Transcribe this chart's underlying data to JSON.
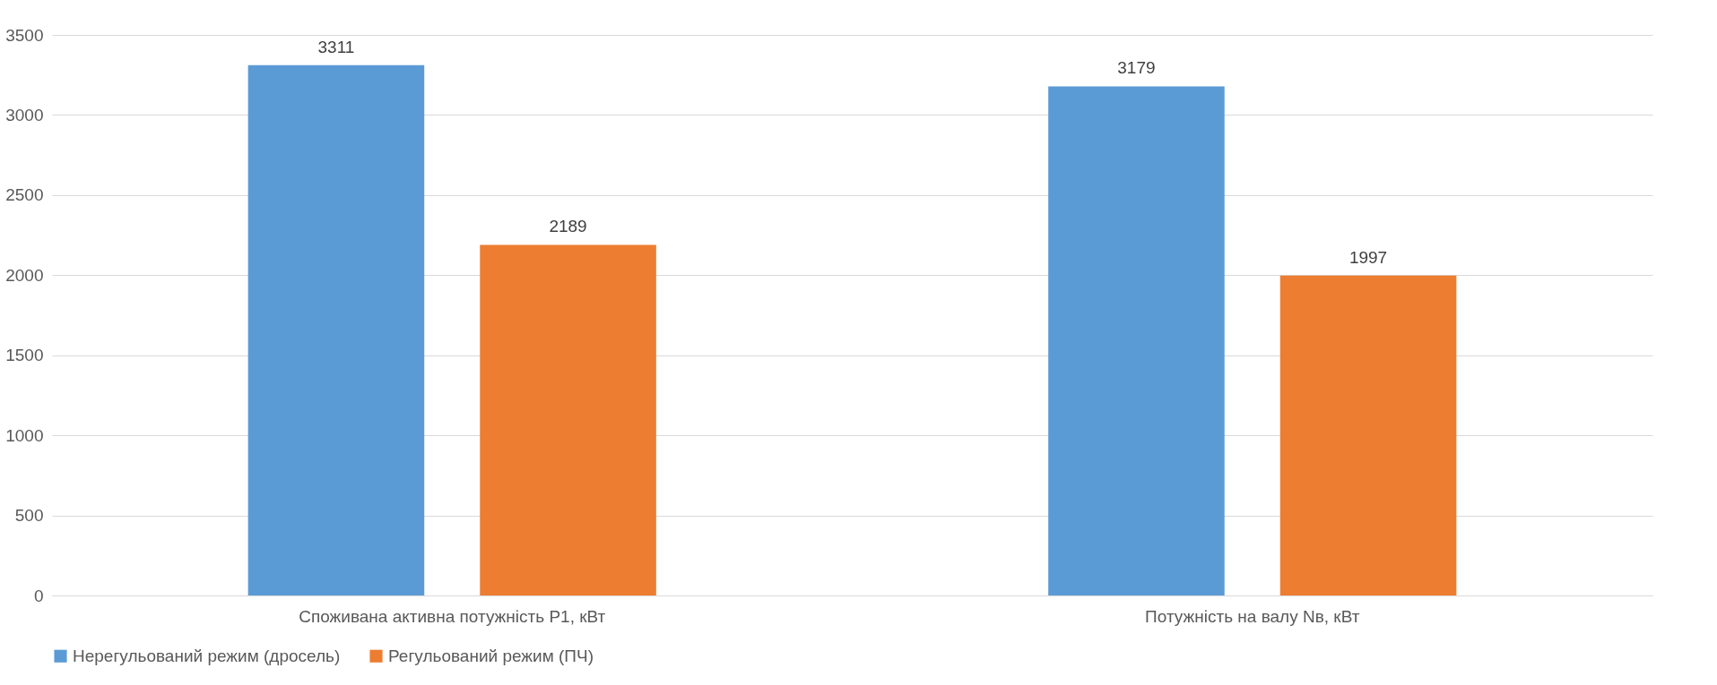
{
  "chart_data": {
    "type": "bar",
    "categories": [
      "Споживана активна потужність Р1, кВт",
      "Потужність на валу Nв, кВт"
    ],
    "series": [
      {
        "name": "Нерегульований режим (дросель)",
        "color": "#5b9bd5",
        "values": [
          3311,
          3179
        ]
      },
      {
        "name": "Регульований режим (ПЧ)",
        "color": "#ed7d31",
        "values": [
          2189,
          1997
        ]
      }
    ],
    "ylim": [
      0,
      3500
    ],
    "yticks": [
      0,
      500,
      1000,
      1500,
      2000,
      2500,
      3000,
      3500
    ],
    "grid": "y",
    "legend": "bottom",
    "data_labels": true
  }
}
